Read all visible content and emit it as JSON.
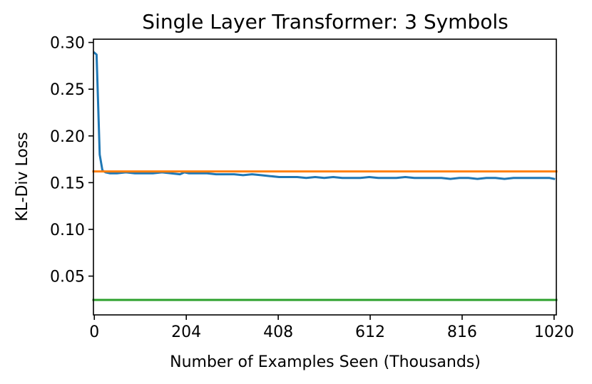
{
  "chart_data": {
    "type": "line",
    "title": "Single Layer Transformer: 3 Symbols",
    "xlabel": "Number of Examples Seen (Thousands)",
    "ylabel": "KL-Div Loss",
    "xlim": [
      -2,
      1025
    ],
    "ylim": [
      0.0085,
      0.3035
    ],
    "xticks": [
      0,
      204,
      408,
      612,
      816,
      1020
    ],
    "xtick_labels": [
      "0",
      "204",
      "408",
      "612",
      "816",
      "1020"
    ],
    "yticks": [
      0.05,
      0.1,
      0.15,
      0.2,
      0.25,
      0.3
    ],
    "ytick_labels": [
      "0.05",
      "0.10",
      "0.15",
      "0.20",
      "0.25",
      "0.30"
    ],
    "grid": false,
    "series": [
      {
        "color": "#1f77b4",
        "x": [
          0,
          5,
          12,
          18,
          25,
          35,
          50,
          70,
          90,
          110,
          130,
          150,
          170,
          190,
          200,
          210,
          230,
          250,
          270,
          290,
          310,
          330,
          350,
          370,
          390,
          410,
          430,
          450,
          470,
          490,
          510,
          530,
          550,
          570,
          590,
          610,
          630,
          650,
          670,
          690,
          710,
          730,
          750,
          770,
          790,
          810,
          830,
          850,
          870,
          890,
          910,
          930,
          950,
          970,
          990,
          1010,
          1020
        ],
        "y": [
          0.289,
          0.287,
          0.18,
          0.163,
          0.161,
          0.16,
          0.16,
          0.161,
          0.16,
          0.16,
          0.16,
          0.161,
          0.16,
          0.159,
          0.161,
          0.16,
          0.16,
          0.16,
          0.159,
          0.159,
          0.159,
          0.158,
          0.159,
          0.158,
          0.157,
          0.156,
          0.156,
          0.156,
          0.155,
          0.156,
          0.155,
          0.156,
          0.155,
          0.155,
          0.155,
          0.156,
          0.155,
          0.155,
          0.155,
          0.156,
          0.155,
          0.155,
          0.155,
          0.155,
          0.154,
          0.155,
          0.155,
          0.154,
          0.155,
          0.155,
          0.154,
          0.155,
          0.155,
          0.155,
          0.155,
          0.155,
          0.154
        ]
      },
      {
        "color": "#ff7f0e",
        "x": [
          -2,
          1025
        ],
        "y": [
          0.162,
          0.162
        ]
      },
      {
        "color": "#2ca02c",
        "x": [
          -2,
          1025
        ],
        "y": [
          0.0245,
          0.0245
        ]
      }
    ]
  }
}
